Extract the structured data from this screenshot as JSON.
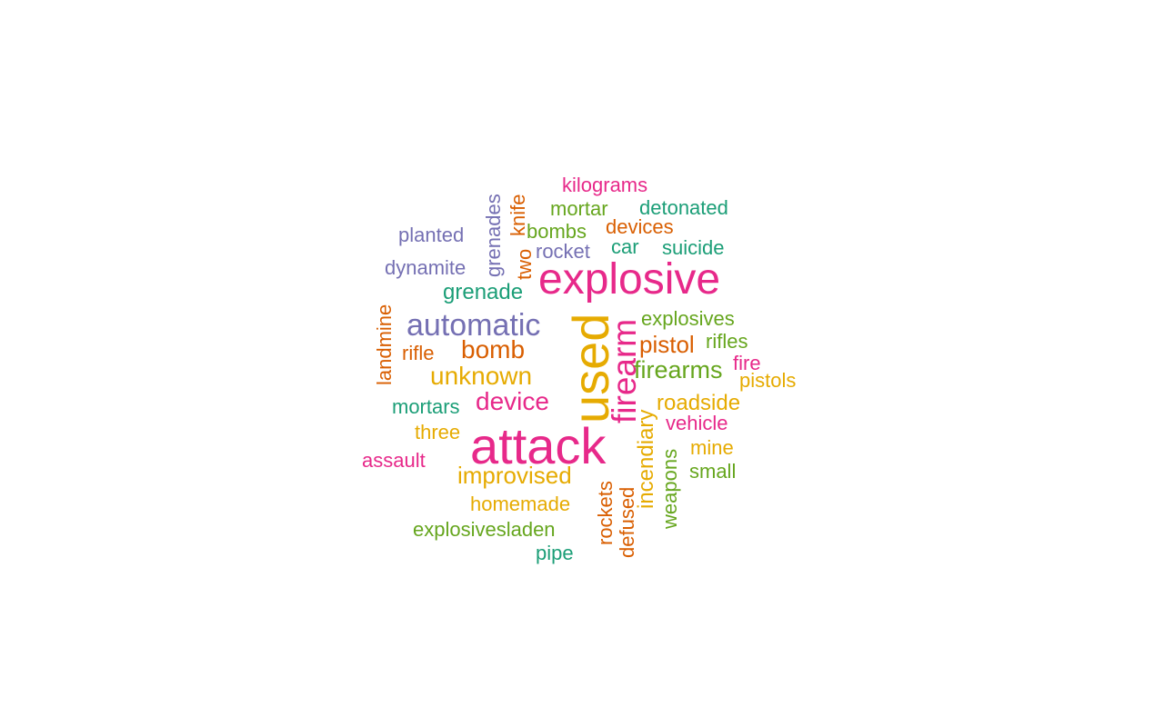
{
  "palette": {
    "teal": "#1b9e77",
    "orange": "#d95f02",
    "purple": "#7570b3",
    "magenta": "#e7298a",
    "green": "#66a61e",
    "gold": "#e6ab02"
  },
  "words": [
    {
      "text": "attack",
      "color": "magenta"
    },
    {
      "text": "used",
      "color": "gold"
    },
    {
      "text": "explosive",
      "color": "magenta"
    },
    {
      "text": "firearm",
      "color": "magenta"
    },
    {
      "text": "automatic",
      "color": "purple"
    },
    {
      "text": "bomb",
      "color": "orange"
    },
    {
      "text": "unknown",
      "color": "gold"
    },
    {
      "text": "device",
      "color": "magenta"
    },
    {
      "text": "firearms",
      "color": "green"
    },
    {
      "text": "improvised",
      "color": "gold"
    },
    {
      "text": "incendiary",
      "color": "gold"
    },
    {
      "text": "pistol",
      "color": "orange"
    },
    {
      "text": "explosives",
      "color": "green"
    },
    {
      "text": "roadside",
      "color": "gold"
    },
    {
      "text": "grenade",
      "color": "teal"
    },
    {
      "text": "kilograms",
      "color": "magenta"
    },
    {
      "text": "mortar",
      "color": "green"
    },
    {
      "text": "detonated",
      "color": "teal"
    },
    {
      "text": "devices",
      "color": "orange"
    },
    {
      "text": "bombs",
      "color": "green"
    },
    {
      "text": "planted",
      "color": "purple"
    },
    {
      "text": "grenades",
      "color": "purple"
    },
    {
      "text": "knife",
      "color": "orange"
    },
    {
      "text": "two",
      "color": "orange"
    },
    {
      "text": "rocket",
      "color": "purple"
    },
    {
      "text": "car",
      "color": "teal"
    },
    {
      "text": "suicide",
      "color": "teal"
    },
    {
      "text": "dynamite",
      "color": "purple"
    },
    {
      "text": "landmine",
      "color": "orange"
    },
    {
      "text": "rifle",
      "color": "orange"
    },
    {
      "text": "rifles",
      "color": "green"
    },
    {
      "text": "fire",
      "color": "magenta"
    },
    {
      "text": "pistols",
      "color": "gold"
    },
    {
      "text": "mortars",
      "color": "teal"
    },
    {
      "text": "vehicle",
      "color": "magenta"
    },
    {
      "text": "three",
      "color": "gold"
    },
    {
      "text": "mine",
      "color": "gold"
    },
    {
      "text": "assault",
      "color": "magenta"
    },
    {
      "text": "small",
      "color": "green"
    },
    {
      "text": "weapons",
      "color": "green"
    },
    {
      "text": "rockets",
      "color": "orange"
    },
    {
      "text": "defused",
      "color": "orange"
    },
    {
      "text": "homemade",
      "color": "gold"
    },
    {
      "text": "explosivesladen",
      "color": "green"
    },
    {
      "text": "pipe",
      "color": "teal"
    }
  ]
}
